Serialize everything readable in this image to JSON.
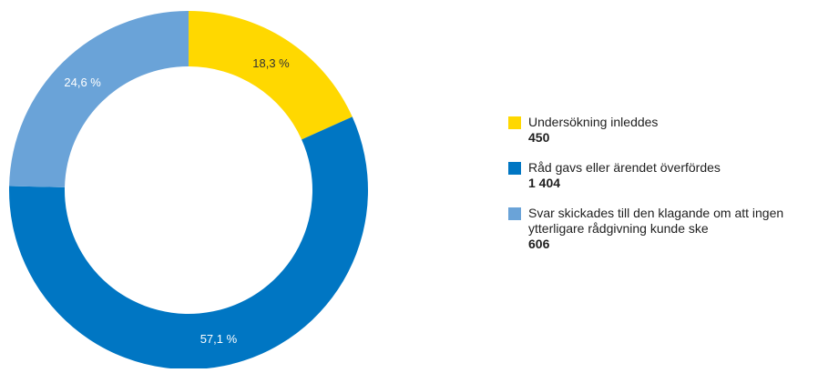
{
  "chart_data": {
    "type": "pie",
    "variant": "donut",
    "slices": [
      {
        "label": "Undersökning inleddes",
        "value": 450,
        "percent_label": "18,3 %",
        "color": "#FFD800",
        "value_label": "450",
        "label_color": "#333333"
      },
      {
        "label": "Råd gavs eller ärendet överfördes",
        "value": 1404,
        "percent_label": "57,1 %",
        "color": "#0076C3",
        "value_label": "1 404",
        "label_color": "#ffffff"
      },
      {
        "label": "Svar skickades till den klagande om att ingen ytterligare rådgivning kunde ske",
        "value": 606,
        "percent_label": "24,6 %",
        "color": "#6AA3D8",
        "value_label": "606",
        "label_color": "#ffffff"
      }
    ],
    "legend_placement": "right"
  }
}
